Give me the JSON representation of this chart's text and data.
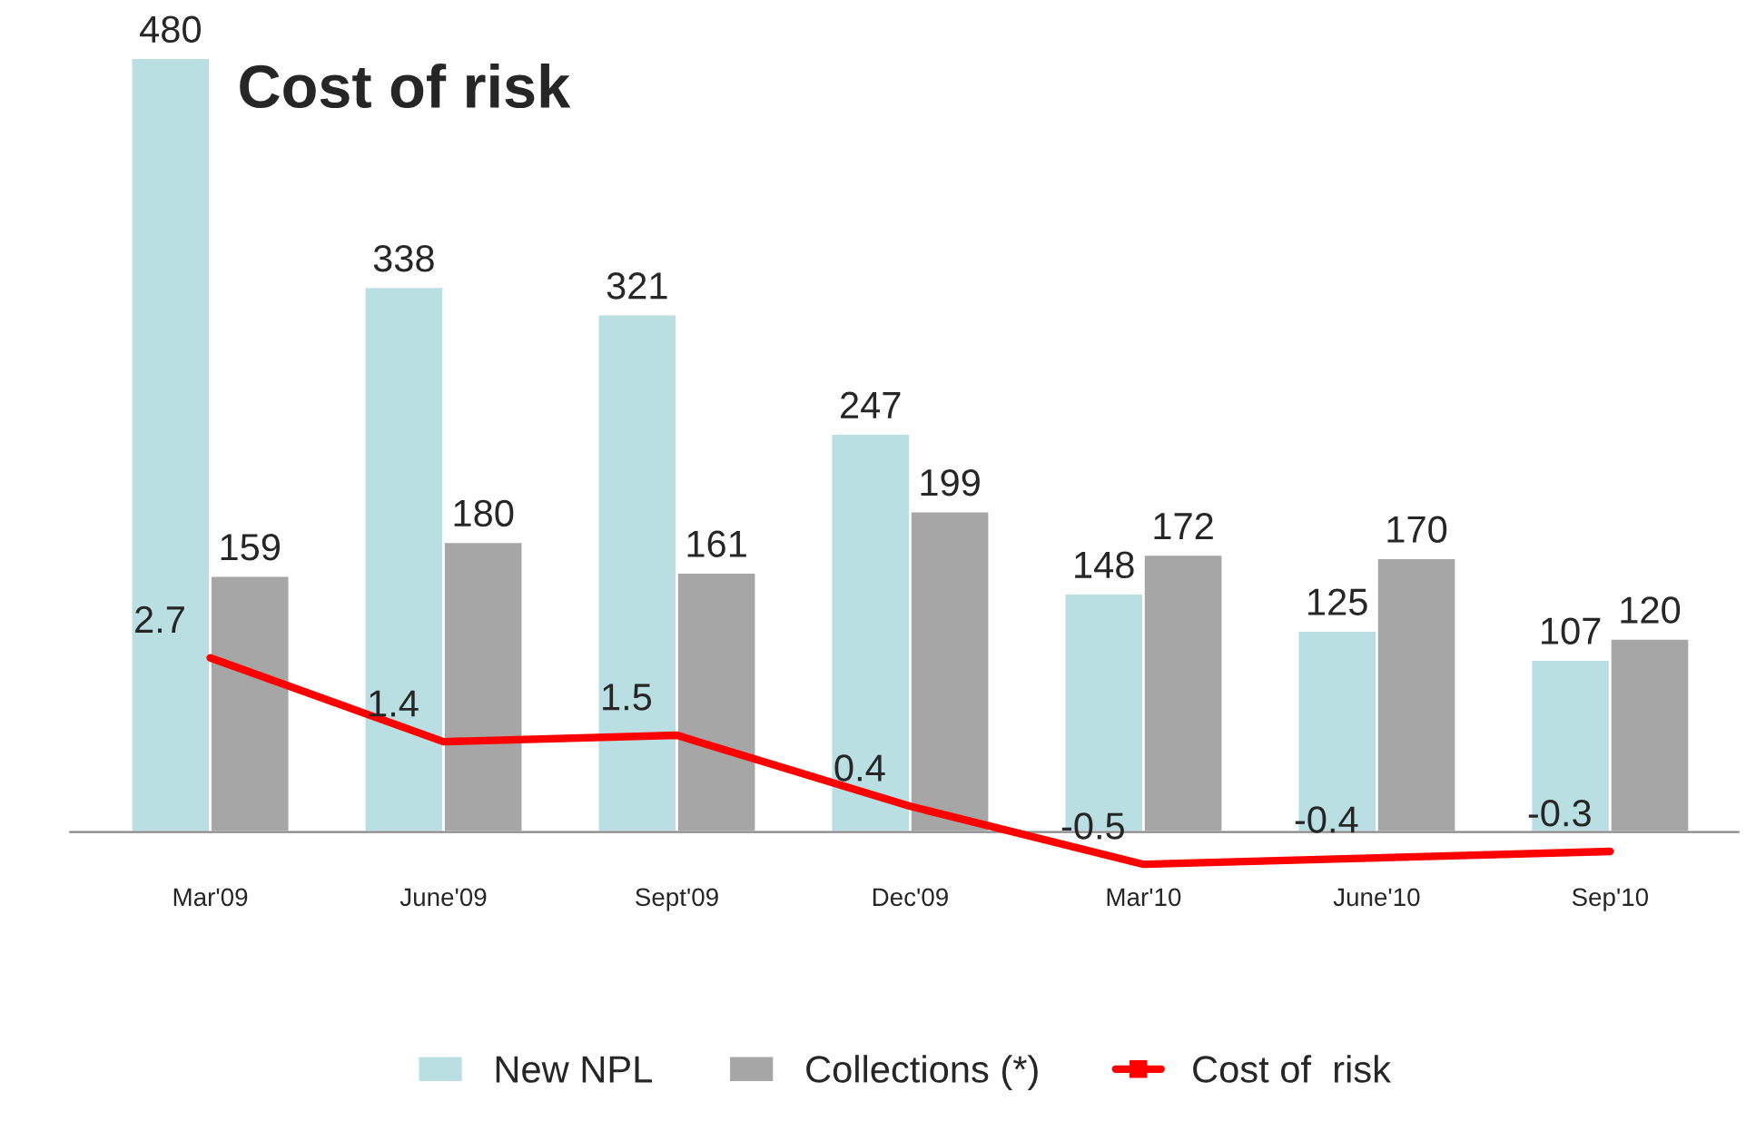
{
  "chart_data": {
    "type": "bar",
    "title": "Cost of risk",
    "categories": [
      "Mar'09",
      "June'09",
      "Sept'09",
      "Dec'09",
      "Mar'10",
      "June'10",
      "Sep'10"
    ],
    "series": [
      {
        "name": "New NPL",
        "color": "#b9dfe3",
        "values": [
          480,
          338,
          321,
          247,
          148,
          125,
          107
        ]
      },
      {
        "name": "Collections (*)",
        "color": "#a6a6a6",
        "values": [
          159,
          180,
          161,
          199,
          172,
          170,
          120
        ]
      },
      {
        "name": "Cost of  risk",
        "type": "line",
        "axis": "y2",
        "color": "#ff0000",
        "values": [
          2.7,
          1.4,
          1.5,
          0.4,
          -0.5,
          -0.4,
          -0.3
        ]
      }
    ],
    "tick_labels": "x",
    "data_labels": true,
    "legend": "bottom",
    "grid": false,
    "line_style": "solid",
    "marker": "none"
  }
}
